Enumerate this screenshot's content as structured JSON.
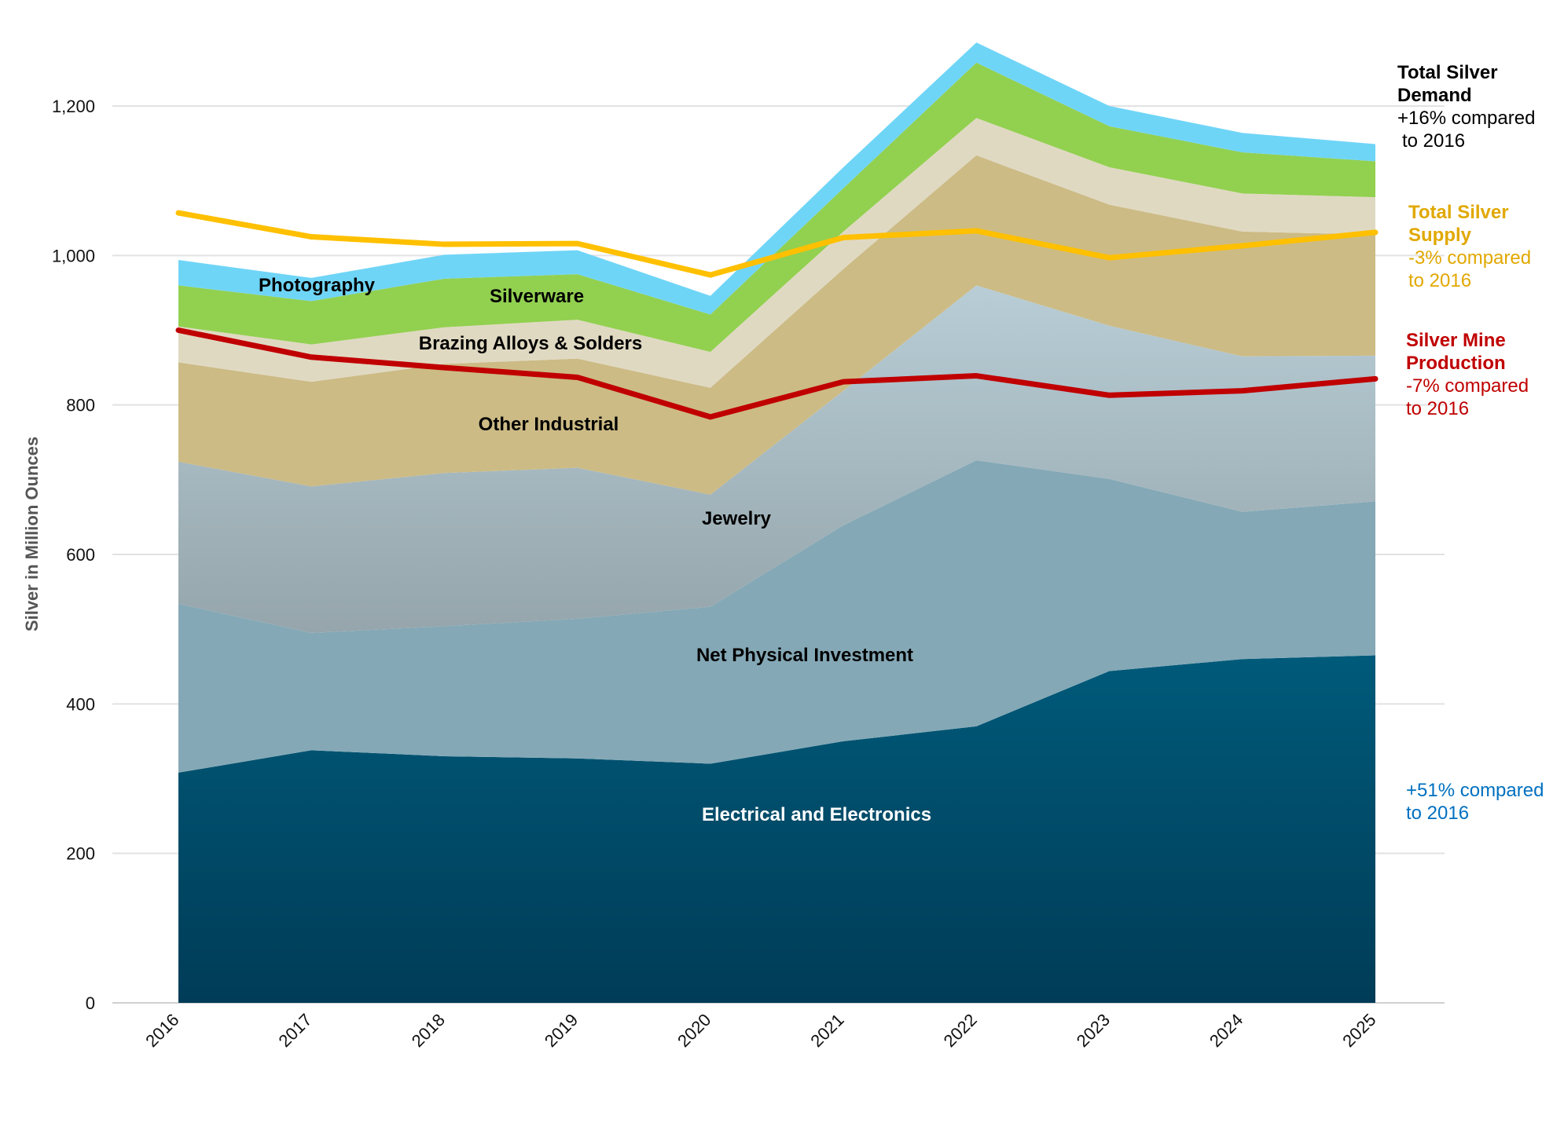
{
  "chart_data": {
    "type": "area",
    "ylabel": "Silver in Million Ounces",
    "x": [
      "2016",
      "2017",
      "2018",
      "2019",
      "2020",
      "2021",
      "2022",
      "2023",
      "2024",
      "2025"
    ],
    "y_ticks": [
      "0",
      "200",
      "400",
      "600",
      "800",
      "1,000",
      "1,200"
    ],
    "ylim": [
      0,
      1300
    ],
    "series": [
      {
        "name": "Electrical and Electronics",
        "color": "#005a7a",
        "values": [
          308,
          338,
          330,
          327,
          320,
          350,
          370,
          444,
          460,
          465
        ]
      },
      {
        "name": "Net Physical Investment",
        "color": "#84a8b6",
        "values": [
          226,
          157,
          174,
          187,
          210,
          289,
          356,
          257,
          197,
          206
        ]
      },
      {
        "name": "Jewelry",
        "color": "#b1c4ce",
        "values": [
          190,
          196,
          205,
          202,
          150,
          180,
          234,
          205,
          208,
          195
        ]
      },
      {
        "name": "Other Industrial",
        "color": "#ccbb85",
        "values": [
          133,
          140,
          146,
          146,
          143,
          163,
          174,
          162,
          167,
          162
        ]
      },
      {
        "name": "Brazing Alloys & Solders",
        "color": "#e0d9c2",
        "values": [
          48,
          50,
          49,
          52,
          48,
          50,
          50,
          50,
          51,
          50
        ]
      },
      {
        "name": "Silverware",
        "color": "#92d050",
        "values": [
          55,
          58,
          65,
          61,
          50,
          58,
          74,
          55,
          55,
          48
        ]
      },
      {
        "name": "Photography",
        "color": "#6fd5f7",
        "values": [
          34,
          31,
          32,
          32,
          25,
          28,
          27,
          27,
          26,
          23
        ]
      }
    ],
    "lines": [
      {
        "name": "Total Silver Supply",
        "color": "#ffc000",
        "values": [
          1057,
          1025,
          1015,
          1016,
          974,
          1024,
          1033,
          997,
          1013,
          1031
        ]
      },
      {
        "name": "Silver Mine Production",
        "color": "#c00000",
        "values": [
          900,
          864,
          850,
          837,
          784,
          831,
          839,
          813,
          819,
          835
        ]
      }
    ]
  },
  "annotations": {
    "demand": {
      "title_line1": "Total Silver",
      "title_line2": "Demand",
      "line1": "+16% compared",
      "line2": "to 2016",
      "color": "#000000"
    },
    "supply": {
      "title_line1": "Total Silver",
      "title_line2": "Supply",
      "line1": "-3% compared",
      "line2": "to 2016",
      "color": "#e1a800"
    },
    "mine": {
      "title_line1": "Silver Mine",
      "title_line2": "Production",
      "line1": "-7% compared",
      "line2": "to 2016",
      "color": "#c00000"
    },
    "electronics": {
      "line1": "+51% compared",
      "line2": "to 2016",
      "color": "#0070c0"
    }
  }
}
